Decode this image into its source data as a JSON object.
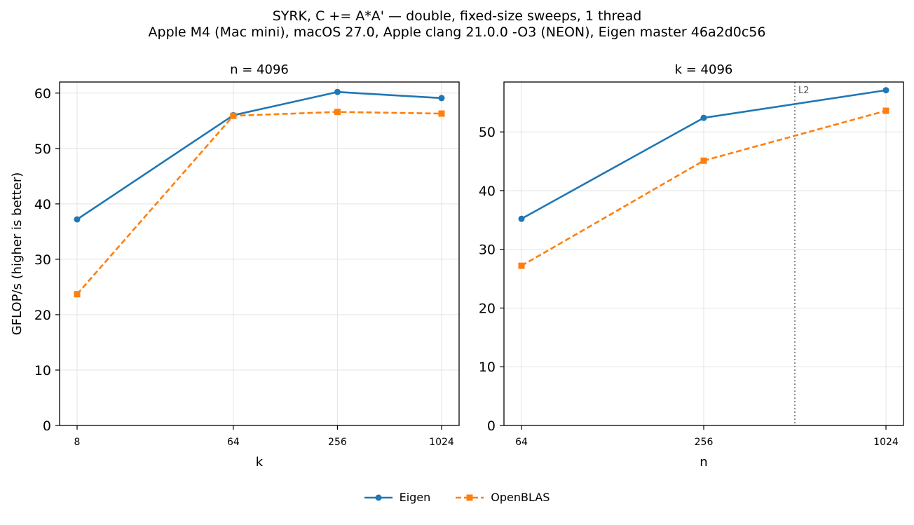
{
  "figure": {
    "title_line1": "SYRK, C += A*A' — double, fixed-size sweeps, 1 thread",
    "title_line2": "Apple M4 (Mac mini), macOS 27.0, Apple clang 21.0.0 -O3 (NEON), Eigen master 46a2d0c56"
  },
  "colors": {
    "eigen": "#1f77b4",
    "openblas": "#ff7f0e"
  },
  "legend": [
    {
      "name": "Eigen",
      "color": "#1f77b4",
      "marker": "circle",
      "dash": "solid"
    },
    {
      "name": "OpenBLAS",
      "color": "#ff7f0e",
      "marker": "square",
      "dash": "dashed"
    }
  ],
  "chart_data": [
    {
      "type": "line",
      "title": "n = 4096",
      "xlabel": "k",
      "ylabel": "GFLOP/s (higher is better)",
      "xscale": "log2",
      "x": [
        8,
        64,
        256,
        1024
      ],
      "xticks": [
        "8",
        "64",
        "256",
        "1024"
      ],
      "ylim": [
        0,
        62
      ],
      "yticks": [
        0,
        10,
        20,
        30,
        40,
        50,
        60
      ],
      "grid": true,
      "series": [
        {
          "name": "Eigen",
          "values": [
            37.2,
            56.0,
            60.2,
            59.1
          ]
        },
        {
          "name": "OpenBLAS",
          "values": [
            23.7,
            55.9,
            56.6,
            56.3
          ]
        }
      ]
    },
    {
      "type": "line",
      "title": "k = 4096",
      "xlabel": "n",
      "ylabel": "",
      "xscale": "log2",
      "x": [
        64,
        256,
        1024
      ],
      "xticks": [
        "64",
        "256",
        "1024"
      ],
      "ylim": [
        0,
        58.5
      ],
      "yticks": [
        0,
        10,
        20,
        30,
        40,
        50
      ],
      "grid": true,
      "vline": {
        "x": 512,
        "label": "L2"
      },
      "series": [
        {
          "name": "Eigen",
          "values": [
            35.2,
            52.4,
            57.1
          ]
        },
        {
          "name": "OpenBLAS",
          "values": [
            27.2,
            45.1,
            53.6
          ]
        }
      ]
    }
  ]
}
